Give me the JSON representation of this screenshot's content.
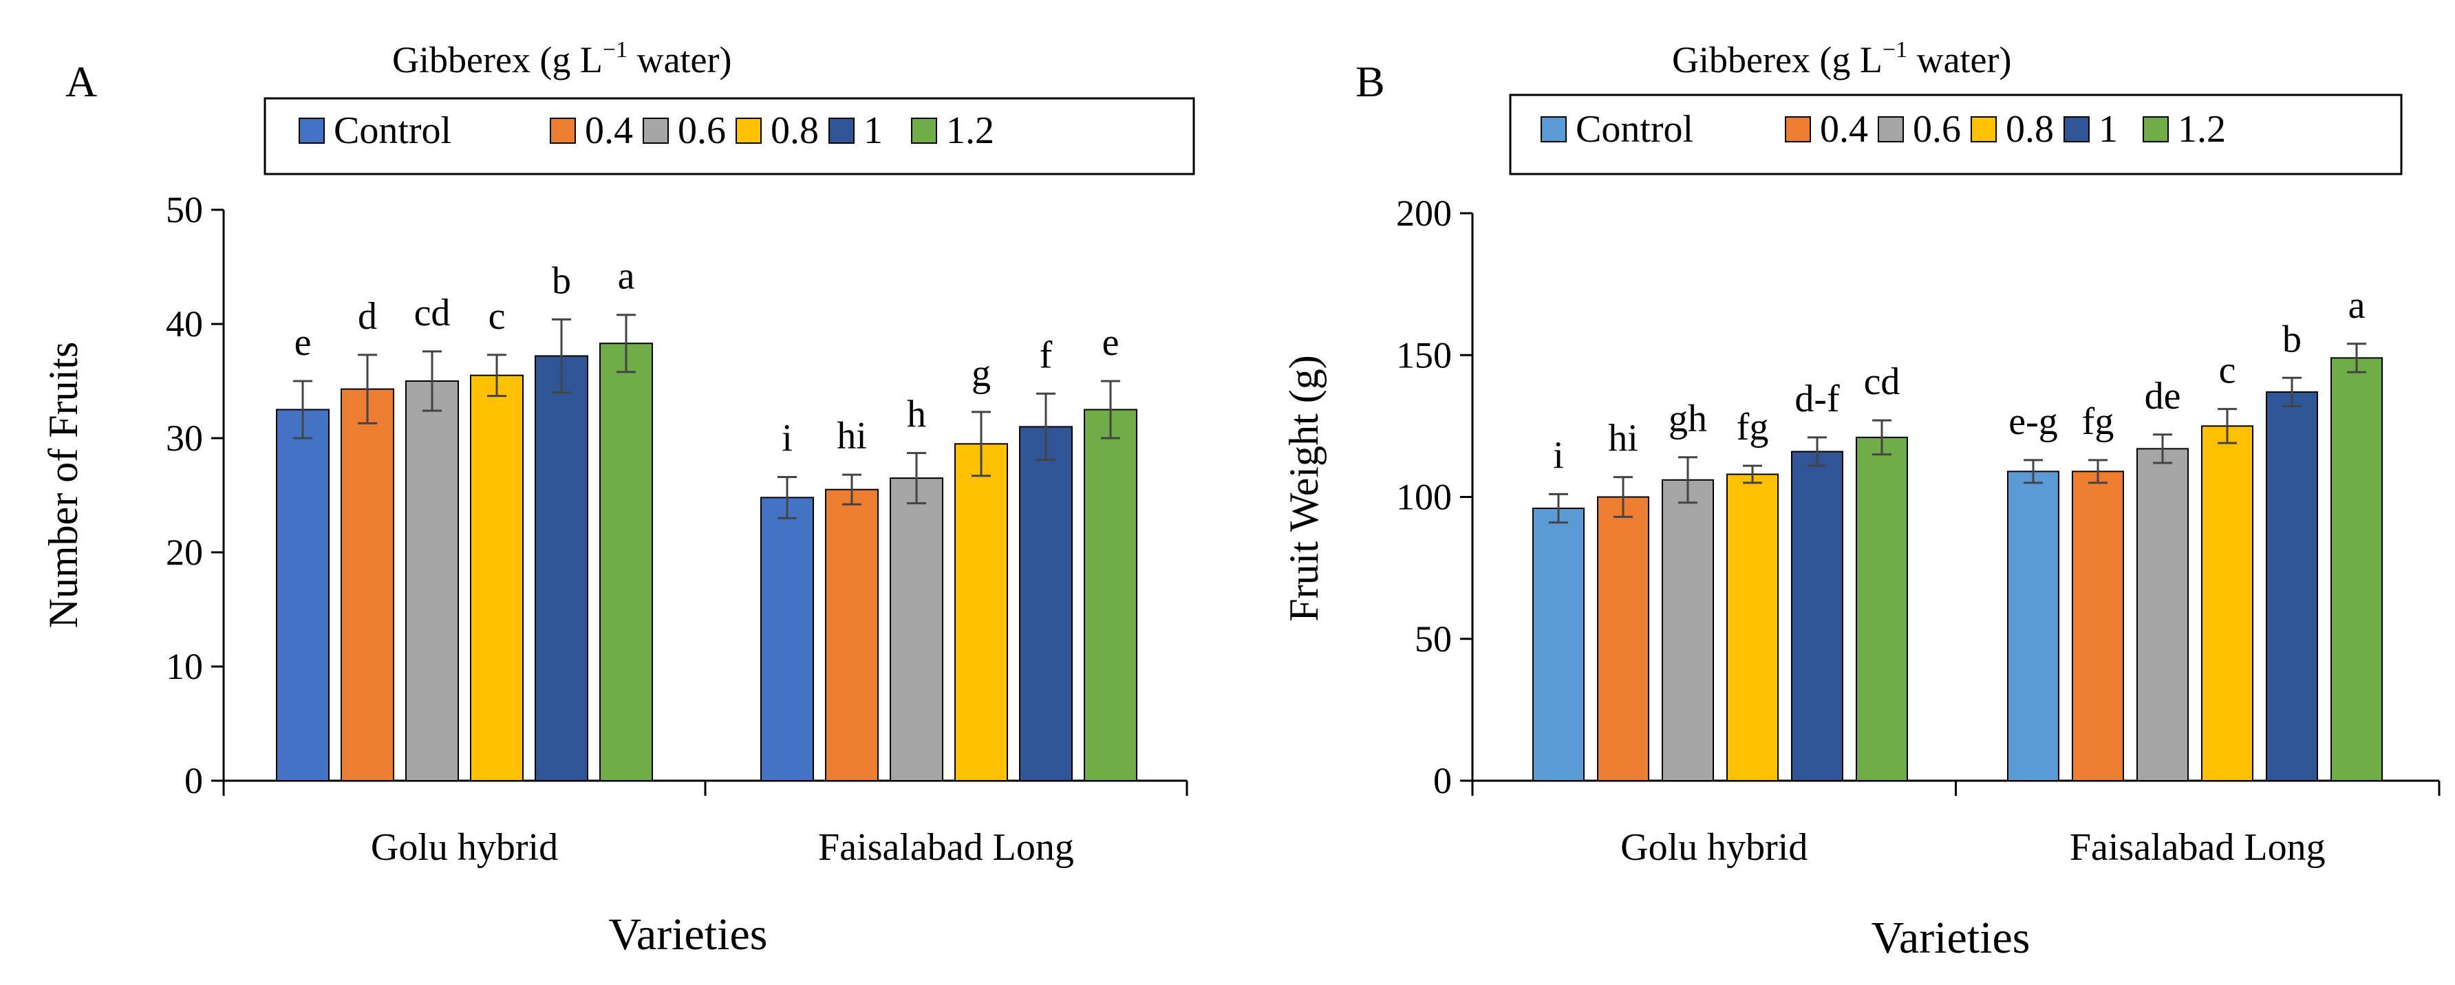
{
  "chart_data": [
    {
      "type": "bar",
      "panel_letter": "A",
      "legend_title": "Gibberex (g L",
      "legend_title_sup": "−1",
      "legend_title_tail": " water)",
      "legend_labels": [
        "Control",
        "0.4",
        "0.6",
        "0.8",
        "1",
        "1.2"
      ],
      "colors": [
        "#4472c4",
        "#ed7d31",
        "#a5a5a5",
        "#ffc000",
        "#2f5597",
        "#70ad47"
      ],
      "categories": [
        "Golu hybrid",
        "Faisalabad Long"
      ],
      "series": [
        {
          "name": "Control",
          "values": [
            32.5,
            24.8
          ],
          "errors": [
            2.5,
            1.8
          ],
          "letters": [
            "e",
            "i"
          ]
        },
        {
          "name": "0.4",
          "values": [
            34.3,
            25.5
          ],
          "errors": [
            3.0,
            1.3
          ],
          "letters": [
            "d",
            "hi"
          ]
        },
        {
          "name": "0.6",
          "values": [
            35.0,
            26.5
          ],
          "errors": [
            2.6,
            2.2
          ],
          "letters": [
            "cd",
            "h"
          ]
        },
        {
          "name": "0.8",
          "values": [
            35.5,
            29.5
          ],
          "errors": [
            1.8,
            2.8
          ],
          "letters": [
            "c",
            "g"
          ]
        },
        {
          "name": "1",
          "values": [
            37.2,
            31.0
          ],
          "errors": [
            3.2,
            2.9
          ],
          "letters": [
            "b",
            "f"
          ]
        },
        {
          "name": "1.2",
          "values": [
            38.3,
            32.5
          ],
          "errors": [
            2.5,
            2.5
          ],
          "letters": [
            "a",
            "e"
          ]
        }
      ],
      "ylim": [
        0,
        50
      ],
      "yticks": [
        0,
        10,
        20,
        30,
        40,
        50
      ],
      "ylabel": "Number of Fruits",
      "xlabel": "Varieties"
    },
    {
      "type": "bar",
      "panel_letter": "B",
      "legend_title": "Gibberex (g L",
      "legend_title_sup": "−1",
      "legend_title_tail": " water)",
      "legend_labels": [
        "Control",
        "0.4",
        "0.6",
        "0.8",
        "1",
        "1.2"
      ],
      "colors": [
        "#5b9bd5",
        "#ed7d31",
        "#a5a5a5",
        "#ffc000",
        "#2f5597",
        "#70ad47"
      ],
      "categories": [
        "Golu hybrid",
        "Faisalabad Long"
      ],
      "series": [
        {
          "name": "Control",
          "values": [
            96,
            109
          ],
          "errors": [
            5,
            4
          ],
          "letters": [
            "i",
            "e-g"
          ]
        },
        {
          "name": "0.4",
          "values": [
            100,
            109
          ],
          "errors": [
            7,
            4
          ],
          "letters": [
            "hi",
            "fg"
          ]
        },
        {
          "name": "0.6",
          "values": [
            106,
            117
          ],
          "errors": [
            8,
            5
          ],
          "letters": [
            "gh",
            "de"
          ]
        },
        {
          "name": "0.8",
          "values": [
            108,
            125
          ],
          "errors": [
            3,
            6
          ],
          "letters": [
            "fg",
            "c"
          ]
        },
        {
          "name": "1",
          "values": [
            116,
            137
          ],
          "errors": [
            5,
            5
          ],
          "letters": [
            "d-f",
            "b"
          ]
        },
        {
          "name": "1.2",
          "values": [
            121,
            149
          ],
          "errors": [
            6,
            5
          ],
          "letters": [
            "cd",
            "a"
          ]
        }
      ],
      "ylim": [
        0,
        200
      ],
      "yticks": [
        0,
        50,
        100,
        150,
        200
      ],
      "ylabel": "Fruit Weight (g)",
      "xlabel": "Varieties"
    }
  ]
}
